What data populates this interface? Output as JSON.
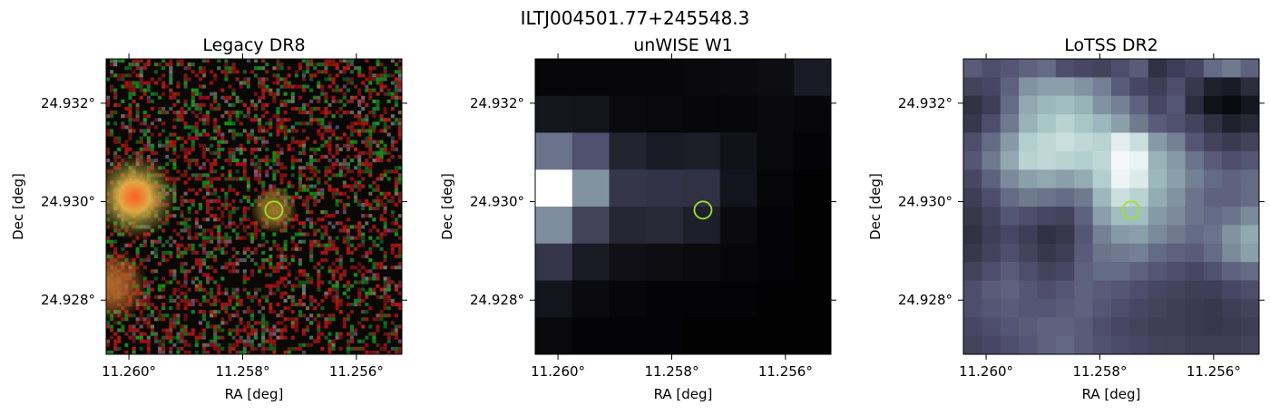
{
  "figure": {
    "title": "ILTJ004501.77+245548.3",
    "colors": {
      "marker": "#9be22a",
      "axis": "#000000",
      "background": "#ffffff"
    }
  },
  "chart_data": [
    {
      "type": "heatmap",
      "title": "Legacy DR8",
      "xlabel": "RA [deg]",
      "ylabel": "Dec [deg]",
      "xticks": [
        11.26,
        11.258,
        11.256
      ],
      "xtick_labels": [
        "11.260°",
        "11.258°",
        "11.256°"
      ],
      "yticks": [
        24.932,
        24.93,
        24.928
      ],
      "ytick_labels": [
        "24.932°",
        "24.930°",
        "24.928°"
      ],
      "xlim": [
        11.2604,
        11.2552
      ],
      "ylim": [
        24.9269,
        24.9329
      ],
      "x_inverted": true,
      "colormap": "rgb-composite (g,r,z)",
      "marker": {
        "shape": "circle",
        "ra": 11.25745,
        "dec": 24.92983,
        "color": "#9be22a"
      },
      "sources": [
        {
          "ra": 11.2599,
          "dec": 24.9301,
          "color": "#c86030"
        },
        {
          "ra": 11.2603,
          "dec": 24.9283,
          "color": "#b4662a"
        },
        {
          "ra": 11.25745,
          "dec": 24.92983,
          "color": "#9a7a2a"
        }
      ],
      "grid": false
    },
    {
      "type": "heatmap",
      "title": "unWISE W1",
      "xlabel": "RA [deg]",
      "ylabel": "Dec [deg]",
      "xticks": [
        11.26,
        11.258,
        11.256
      ],
      "xtick_labels": [
        "11.260°",
        "11.258°",
        "11.256°"
      ],
      "yticks": [
        24.932,
        24.93,
        24.928
      ],
      "ytick_labels": [
        "24.932°",
        "24.930°",
        "24.928°"
      ],
      "xlim": [
        11.2604,
        11.2552
      ],
      "ylim": [
        24.9269,
        24.9329
      ],
      "x_inverted": true,
      "colormap": "bone",
      "marker": {
        "shape": "circle",
        "ra": 11.25745,
        "dec": 24.92983,
        "color": "#9be22a"
      },
      "pixels": [
        [
          0.03,
          0.03,
          0.03,
          0.03,
          0.04,
          0.05,
          0.06,
          0.12
        ],
        [
          0.1,
          0.09,
          0.05,
          0.04,
          0.03,
          0.03,
          0.04,
          0.03
        ],
        [
          0.48,
          0.36,
          0.16,
          0.12,
          0.13,
          0.08,
          0.04,
          0.02
        ],
        [
          1.0,
          0.58,
          0.24,
          0.23,
          0.22,
          0.09,
          0.03,
          0.01
        ],
        [
          0.56,
          0.3,
          0.17,
          0.18,
          0.14,
          0.05,
          0.02,
          0.01
        ],
        [
          0.24,
          0.12,
          0.07,
          0.06,
          0.05,
          0.03,
          0.02,
          0.01
        ],
        [
          0.09,
          0.05,
          0.03,
          0.02,
          0.02,
          0.02,
          0.01,
          0.01
        ],
        [
          0.04,
          0.02,
          0.02,
          0.02,
          0.01,
          0.01,
          0.01,
          0.01
        ]
      ],
      "grid": false
    },
    {
      "type": "heatmap",
      "title": "LoTSS DR2",
      "xlabel": "RA [deg]",
      "ylabel": "Dec [deg]",
      "xticks": [
        11.26,
        11.258,
        11.256
      ],
      "xtick_labels": [
        "11.260°",
        "11.258°",
        "11.256°"
      ],
      "yticks": [
        24.932,
        24.93,
        24.928
      ],
      "ytick_labels": [
        "24.932°",
        "24.930°",
        "24.928°"
      ],
      "xlim": [
        11.2604,
        11.2552
      ],
      "ylim": [
        24.9269,
        24.9329
      ],
      "x_inverted": true,
      "colormap": "bone",
      "marker": {
        "shape": "circle",
        "ra": 11.25745,
        "dec": 24.92983,
        "color": "#9be22a"
      },
      "pixels": [
        [
          0.4,
          0.35,
          0.38,
          0.42,
          0.45,
          0.35,
          0.32,
          0.3,
          0.35,
          0.4,
          0.22,
          0.28,
          0.32,
          0.45,
          0.5,
          0.42
        ],
        [
          0.3,
          0.32,
          0.42,
          0.58,
          0.62,
          0.62,
          0.58,
          0.52,
          0.4,
          0.32,
          0.28,
          0.35,
          0.25,
          0.15,
          0.12,
          0.2
        ],
        [
          0.22,
          0.28,
          0.45,
          0.65,
          0.7,
          0.72,
          0.68,
          0.58,
          0.52,
          0.42,
          0.32,
          0.38,
          0.2,
          0.08,
          0.05,
          0.1
        ],
        [
          0.25,
          0.35,
          0.5,
          0.68,
          0.75,
          0.8,
          0.75,
          0.7,
          0.62,
          0.5,
          0.4,
          0.36,
          0.3,
          0.22,
          0.15,
          0.18
        ],
        [
          0.35,
          0.45,
          0.6,
          0.78,
          0.82,
          0.85,
          0.82,
          0.8,
          0.92,
          0.85,
          0.6,
          0.52,
          0.38,
          0.3,
          0.26,
          0.3
        ],
        [
          0.38,
          0.5,
          0.65,
          0.8,
          0.82,
          0.8,
          0.78,
          0.82,
          0.97,
          0.94,
          0.68,
          0.6,
          0.48,
          0.4,
          0.35,
          0.38
        ],
        [
          0.32,
          0.42,
          0.55,
          0.62,
          0.65,
          0.62,
          0.66,
          0.78,
          0.95,
          0.9,
          0.7,
          0.62,
          0.52,
          0.45,
          0.42,
          0.45
        ],
        [
          0.28,
          0.35,
          0.45,
          0.5,
          0.48,
          0.45,
          0.5,
          0.7,
          0.85,
          0.8,
          0.66,
          0.58,
          0.48,
          0.42,
          0.42,
          0.45
        ],
        [
          0.25,
          0.3,
          0.38,
          0.35,
          0.32,
          0.3,
          0.42,
          0.62,
          0.72,
          0.72,
          0.6,
          0.55,
          0.48,
          0.45,
          0.48,
          0.55
        ],
        [
          0.22,
          0.28,
          0.32,
          0.28,
          0.22,
          0.25,
          0.38,
          0.52,
          0.6,
          0.62,
          0.55,
          0.5,
          0.45,
          0.48,
          0.58,
          0.65
        ],
        [
          0.25,
          0.3,
          0.35,
          0.3,
          0.25,
          0.28,
          0.4,
          0.48,
          0.5,
          0.52,
          0.45,
          0.42,
          0.4,
          0.45,
          0.55,
          0.62
        ],
        [
          0.3,
          0.35,
          0.4,
          0.35,
          0.3,
          0.32,
          0.42,
          0.45,
          0.45,
          0.42,
          0.38,
          0.35,
          0.32,
          0.36,
          0.42,
          0.45
        ],
        [
          0.35,
          0.4,
          0.42,
          0.38,
          0.35,
          0.38,
          0.42,
          0.4,
          0.38,
          0.35,
          0.32,
          0.3,
          0.28,
          0.28,
          0.32,
          0.35
        ],
        [
          0.35,
          0.38,
          0.4,
          0.38,
          0.38,
          0.4,
          0.42,
          0.38,
          0.35,
          0.32,
          0.3,
          0.28,
          0.26,
          0.25,
          0.28,
          0.3
        ],
        [
          0.32,
          0.35,
          0.38,
          0.4,
          0.42,
          0.42,
          0.4,
          0.35,
          0.32,
          0.3,
          0.28,
          0.28,
          0.26,
          0.25,
          0.26,
          0.28
        ],
        [
          0.3,
          0.32,
          0.35,
          0.38,
          0.42,
          0.44,
          0.4,
          0.36,
          0.34,
          0.32,
          0.3,
          0.3,
          0.28,
          0.28,
          0.28,
          0.3
        ]
      ],
      "grid": false
    }
  ]
}
